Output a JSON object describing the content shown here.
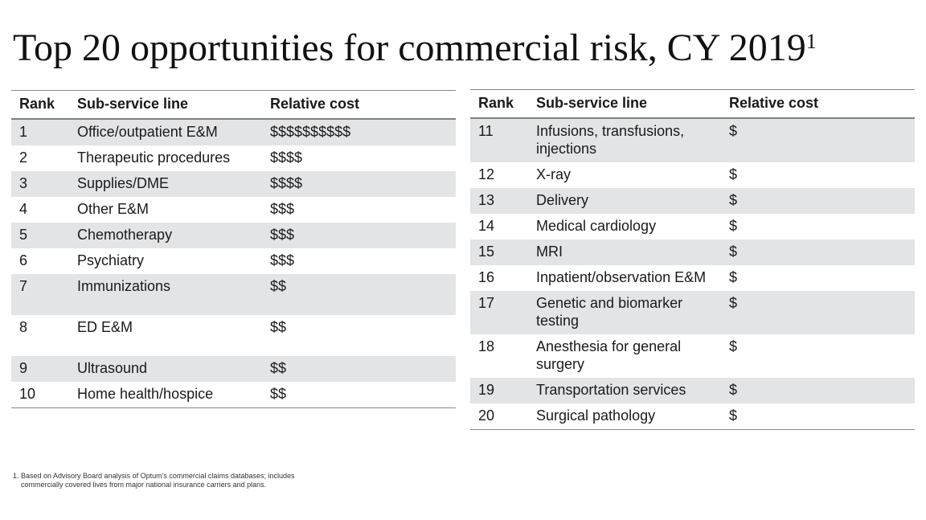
{
  "title": {
    "text": "Top 20 opportunities for commercial risk, CY 2019",
    "footnote_ref": "1"
  },
  "columns": {
    "rank": "Rank",
    "line": "Sub-service line",
    "cost": "Relative cost"
  },
  "left_rows": [
    {
      "rank": "1",
      "line": "Office/outpatient E&M",
      "cost": "$$$$$$$$$$"
    },
    {
      "rank": "2",
      "line": "Therapeutic procedures",
      "cost": "$$$$"
    },
    {
      "rank": "3",
      "line": "Supplies/DME",
      "cost": "$$$$"
    },
    {
      "rank": "4",
      "line": "Other E&M",
      "cost": "$$$"
    },
    {
      "rank": "5",
      "line": "Chemotherapy",
      "cost": "$$$"
    },
    {
      "rank": "6",
      "line": "Psychiatry",
      "cost": "$$$"
    },
    {
      "rank": "7",
      "line": "Immunizations",
      "cost": "$$"
    },
    {
      "rank": "8",
      "line": "ED E&M",
      "cost": "$$"
    },
    {
      "rank": "9",
      "line": "Ultrasound",
      "cost": "$$"
    },
    {
      "rank": "10",
      "line": "Home health/hospice",
      "cost": "$$"
    }
  ],
  "right_rows": [
    {
      "rank": "11",
      "line": "Infusions, transfusions, injections",
      "cost": "$"
    },
    {
      "rank": "12",
      "line": "X-ray",
      "cost": "$"
    },
    {
      "rank": "13",
      "line": "Delivery",
      "cost": "$"
    },
    {
      "rank": "14",
      "line": "Medical cardiology",
      "cost": "$"
    },
    {
      "rank": "15",
      "line": "MRI",
      "cost": "$"
    },
    {
      "rank": "16",
      "line": "Inpatient/observation E&M",
      "cost": "$"
    },
    {
      "rank": "17",
      "line": "Genetic and biomarker testing",
      "cost": "$"
    },
    {
      "rank": "18",
      "line": "Anesthesia for general surgery",
      "cost": "$"
    },
    {
      "rank": "19",
      "line": "Transportation services",
      "cost": "$"
    },
    {
      "rank": "20",
      "line": "Surgical pathology",
      "cost": "$"
    }
  ],
  "footnote": {
    "number": "1.",
    "text": "Based on Advisory Board analysis of Optum’s commercial claims databases; includes commercially covered lives from major national insurance carriers and plans."
  }
}
